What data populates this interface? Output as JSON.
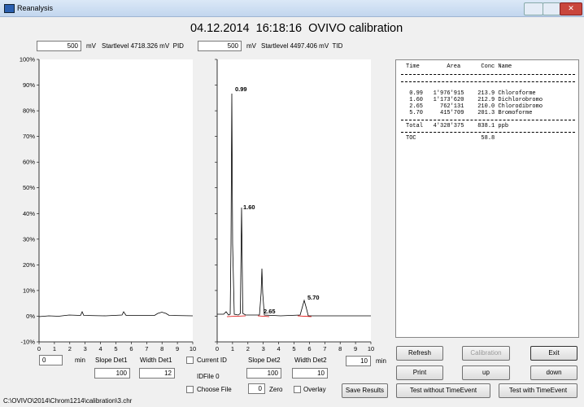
{
  "window": {
    "title": "Reanalysis"
  },
  "header": {
    "title": "04.12.2014  16:18:16  OVIVO calibration"
  },
  "detectors": [
    {
      "level": "500",
      "unit": "mV",
      "startlevel": "Startlevel 4718.326 mV  PID"
    },
    {
      "level": "500",
      "unit": "mV",
      "startlevel": "Startlevel 4497.406 mV  TID"
    }
  ],
  "axes": {
    "y_labels": [
      "100%",
      "90%",
      "80%",
      "70%",
      "60%",
      "50%",
      "40%",
      "30%",
      "20%",
      "10%",
      "0%",
      "-10%"
    ],
    "x_labels": [
      "0",
      "1",
      "2",
      "3",
      "4",
      "5",
      "6",
      "7",
      "8",
      "9",
      "10"
    ]
  },
  "peak_labels": [
    "0.99",
    "1.60",
    "2.65",
    "5.70"
  ],
  "results": {
    "header": "Time        Area      Conc Name",
    "rows": [
      " 0.99   1'976'915    213.9 Chloroforme",
      " 1.60   1'173'620    212.9 Dichlorobromo",
      " 2.65     762'131    210.0 Chlorodibromo",
      " 5.70     415'709    201.3 Bromoforme"
    ],
    "total": "Total   4'328'375    838.1 ppb",
    "toc": "TOC                   58.8"
  },
  "controls": {
    "start": "0",
    "start_unit": "min",
    "slope1_label": "Slope Det1",
    "width1_label": "Width Det1",
    "slope1": "100",
    "width1": "12",
    "current_id": "Current ID",
    "idfile": "IDFile 0",
    "choose_file": "Choose File",
    "slope2_label": "Slope Det2",
    "width2_label": "Width Det2",
    "slope2": "100",
    "width2": "10",
    "end": "10",
    "end_unit": "min",
    "zero": "0",
    "zero_label": "Zero",
    "overlay": "Overlay",
    "save": "Save Results"
  },
  "buttons": [
    "Refresh",
    "Calibration",
    "Exit",
    "Print",
    "up",
    "down",
    "Test without TimeEvent",
    "Test with TimeEvent"
  ],
  "status": "C:\\OVIVO\\2014\\Chrom1214\\calibration\\3.chr"
}
